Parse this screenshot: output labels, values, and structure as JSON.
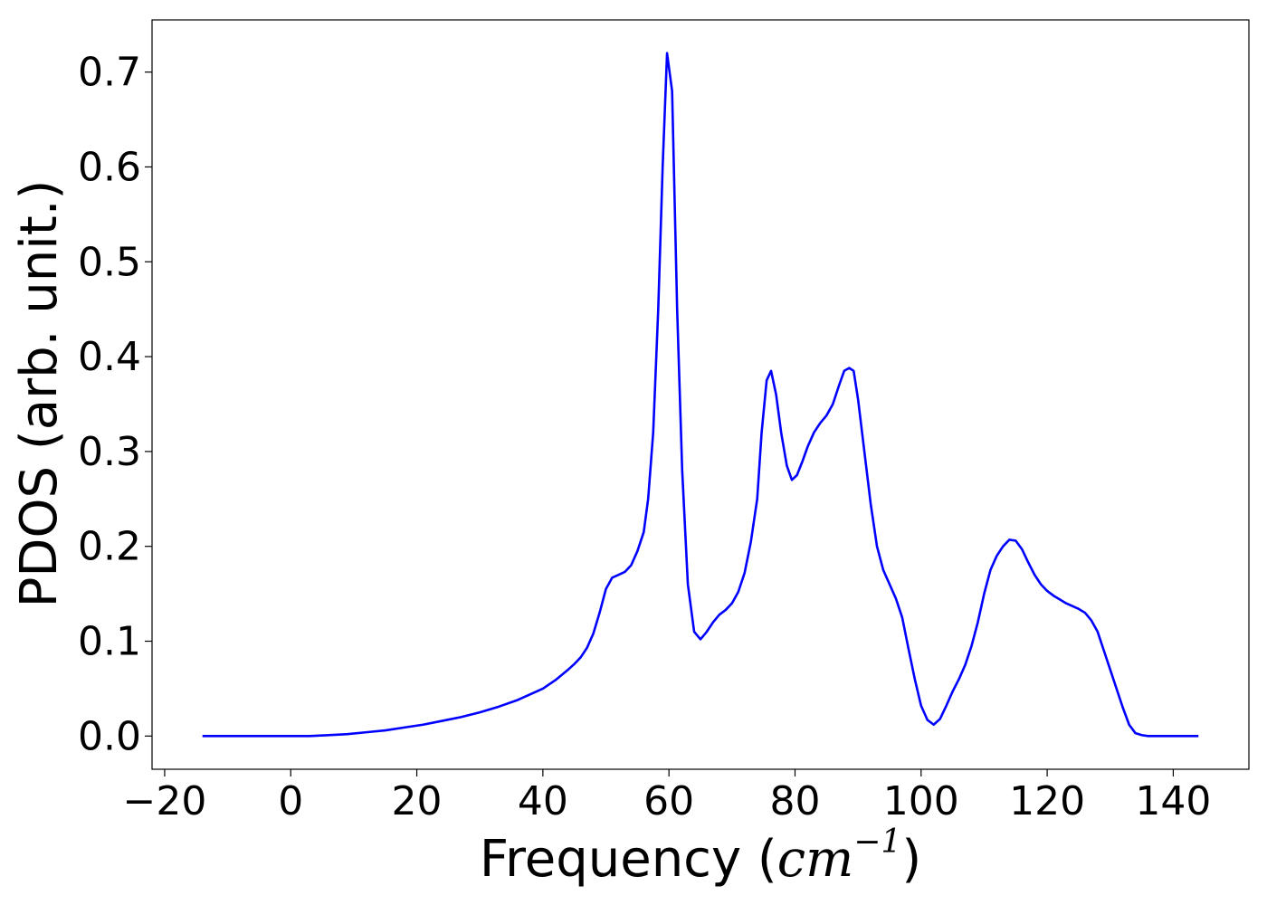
{
  "chart_data": {
    "type": "line",
    "xlabel_prefix": "Frequency (",
    "xlabel_unit_base": "cm",
    "xlabel_unit_exponent": "−1",
    "xlabel_suffix": ")",
    "ylabel": "PDOS (arb. unit.)",
    "xlim": [
      -22,
      152
    ],
    "ylim": [
      -0.035,
      0.755
    ],
    "xticks": [
      -20,
      0,
      20,
      40,
      60,
      80,
      100,
      120,
      140
    ],
    "xtick_labels": [
      "−20",
      "0",
      "20",
      "40",
      "60",
      "80",
      "100",
      "120",
      "140"
    ],
    "yticks": [
      0.0,
      0.1,
      0.2,
      0.3,
      0.4,
      0.5,
      0.6,
      0.7
    ],
    "ytick_labels": [
      "0.0",
      "0.1",
      "0.2",
      "0.3",
      "0.4",
      "0.5",
      "0.6",
      "0.7"
    ],
    "grid": false,
    "line_color": "#0000ff",
    "x": [
      -14,
      -10,
      -5,
      0,
      3,
      6,
      9,
      12,
      15,
      18,
      21,
      24,
      27,
      30,
      33,
      36,
      38,
      40,
      42,
      44,
      45,
      46,
      47,
      48,
      49,
      50,
      51,
      52,
      53,
      54,
      55,
      56,
      56.7,
      57.5,
      58.3,
      59,
      59.7,
      60.5,
      61.3,
      62.1,
      63,
      64,
      65,
      66,
      67,
      68,
      69,
      70,
      71,
      72,
      73,
      74,
      74.7,
      75.5,
      76.2,
      77,
      77.8,
      78.7,
      79.5,
      80.3,
      81.2,
      82,
      83,
      84,
      85,
      86,
      87,
      87.8,
      88.6,
      89.3,
      90,
      91,
      92,
      93,
      94,
      95,
      96,
      97,
      98,
      99,
      100,
      101,
      102,
      103,
      104,
      105,
      106,
      107,
      108,
      109,
      110,
      111,
      112,
      113,
      114,
      115,
      116,
      117,
      118,
      119,
      120,
      121,
      122,
      123,
      124,
      125,
      126,
      127,
      128,
      129,
      130,
      131,
      132,
      133,
      134,
      135,
      136,
      138,
      140,
      142,
      144
    ],
    "y": [
      0.0,
      0.0,
      0.0,
      0.0,
      0.0,
      0.001,
      0.002,
      0.004,
      0.006,
      0.009,
      0.012,
      0.016,
      0.02,
      0.025,
      0.031,
      0.038,
      0.044,
      0.05,
      0.059,
      0.07,
      0.076,
      0.083,
      0.093,
      0.108,
      0.13,
      0.155,
      0.167,
      0.17,
      0.173,
      0.18,
      0.195,
      0.215,
      0.25,
      0.32,
      0.45,
      0.6,
      0.72,
      0.68,
      0.45,
      0.28,
      0.16,
      0.11,
      0.102,
      0.11,
      0.12,
      0.128,
      0.133,
      0.14,
      0.152,
      0.172,
      0.205,
      0.25,
      0.32,
      0.375,
      0.385,
      0.36,
      0.32,
      0.285,
      0.27,
      0.275,
      0.29,
      0.305,
      0.32,
      0.33,
      0.338,
      0.35,
      0.37,
      0.385,
      0.388,
      0.385,
      0.355,
      0.3,
      0.245,
      0.2,
      0.175,
      0.16,
      0.145,
      0.125,
      0.092,
      0.06,
      0.032,
      0.017,
      0.012,
      0.018,
      0.032,
      0.047,
      0.06,
      0.075,
      0.095,
      0.12,
      0.15,
      0.175,
      0.19,
      0.2,
      0.207,
      0.206,
      0.197,
      0.183,
      0.17,
      0.16,
      0.153,
      0.148,
      0.144,
      0.14,
      0.137,
      0.134,
      0.13,
      0.122,
      0.11,
      0.09,
      0.07,
      0.05,
      0.03,
      0.012,
      0.003,
      0.001,
      0.0,
      0.0,
      0.0,
      0.0,
      0.0
    ]
  }
}
